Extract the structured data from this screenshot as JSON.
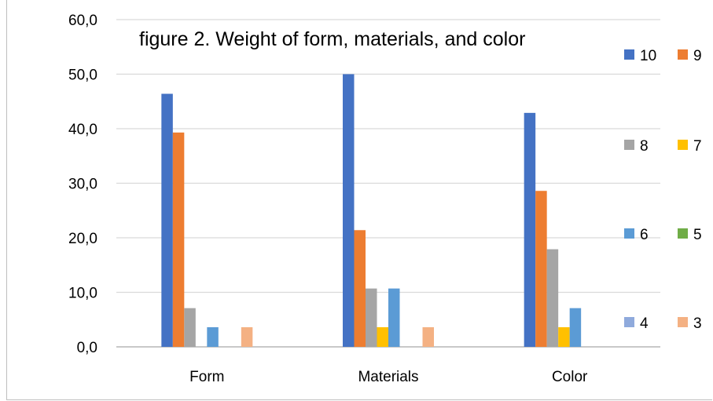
{
  "chart_data": {
    "type": "bar",
    "title": "figure 2. Weight of form, materials, and color",
    "xlabel": "",
    "ylabel": "",
    "ylim": [
      0,
      60
    ],
    "ytick_labels": [
      "0,0",
      "10,0",
      "20,0",
      "30,0",
      "40,0",
      "50,0",
      "60,0"
    ],
    "categories": [
      "Form",
      "Materials",
      "Color"
    ],
    "grid": true,
    "legend_position": "right",
    "series": [
      {
        "name": "10",
        "color": "#4472c4",
        "values": [
          46.4,
          50.0,
          42.9
        ]
      },
      {
        "name": "9",
        "color": "#ed7d31",
        "values": [
          39.3,
          21.4,
          28.6
        ]
      },
      {
        "name": "8",
        "color": "#a5a5a5",
        "values": [
          7.1,
          10.7,
          17.9
        ]
      },
      {
        "name": "7",
        "color": "#ffc000",
        "values": [
          0,
          3.6,
          3.6
        ]
      },
      {
        "name": "6",
        "color": "#5b9bd5",
        "values": [
          3.6,
          10.7,
          7.1
        ]
      },
      {
        "name": "5",
        "color": "#70ad47",
        "values": [
          0,
          0,
          0
        ]
      },
      {
        "name": "4",
        "color": "#8faadc",
        "values": [
          0,
          0,
          0
        ]
      },
      {
        "name": "3",
        "color": "#f4b183",
        "values": [
          3.6,
          3.6,
          0
        ]
      }
    ]
  }
}
